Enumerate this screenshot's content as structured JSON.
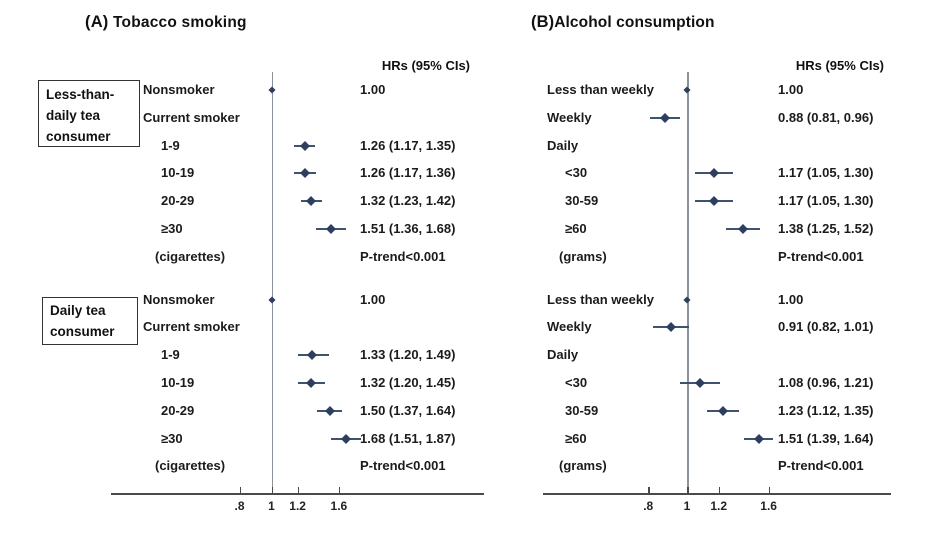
{
  "figure": {
    "colors": {
      "marker": "#2d3e5f",
      "ci_line": "#41526e",
      "ref_line": "#8b929a",
      "axis_line": "#4a4a4a",
      "text": "#1a1a1a"
    }
  },
  "chart_data": [
    {
      "type": "forest",
      "panel_label": "(A)",
      "title": "Tobacco smoking",
      "column_header": "HRs (95% CIs)",
      "x_scale": "log",
      "ref_value": 1,
      "x_ticks": [
        0.8,
        1,
        1.2,
        1.6
      ],
      "x_tick_labels": [
        ".8",
        "1",
        "1.2",
        "1.6"
      ],
      "groups": [
        {
          "box_label_lines": [
            "Less-than-",
            "daily tea",
            "consumer"
          ],
          "rows": [
            {
              "label": "Nonsmoker",
              "indent": 0,
              "est": 1.0,
              "hr_text": "1.00"
            },
            {
              "label": "Current smoker",
              "indent": 0
            },
            {
              "label": "1-9",
              "indent": 1,
              "est": 1.26,
              "lo": 1.17,
              "hi": 1.35,
              "hr_text": "1.26 (1.17, 1.35)"
            },
            {
              "label": "10-19",
              "indent": 1,
              "est": 1.26,
              "lo": 1.17,
              "hi": 1.36,
              "hr_text": "1.26 (1.17, 1.36)"
            },
            {
              "label": "20-29",
              "indent": 1,
              "est": 1.32,
              "lo": 1.23,
              "hi": 1.42,
              "hr_text": "1.32 (1.23, 1.42)"
            },
            {
              "label": "≥30",
              "indent": 1,
              "est": 1.51,
              "lo": 1.36,
              "hi": 1.68,
              "hr_text": "1.51 (1.36, 1.68)"
            },
            {
              "label": "(cigarettes)",
              "indent": 1,
              "unit_row": true,
              "hr_text": "P-trend<0.001",
              "hr_bold": true
            }
          ]
        },
        {
          "box_label_lines": [
            "Daily tea",
            "consumer"
          ],
          "rows": [
            {
              "label": "Nonsmoker",
              "indent": 0,
              "est": 1.0,
              "hr_text": "1.00"
            },
            {
              "label": "Current smoker",
              "indent": 0
            },
            {
              "label": "1-9",
              "indent": 1,
              "est": 1.33,
              "lo": 1.2,
              "hi": 1.49,
              "hr_text": "1.33 (1.20, 1.49)"
            },
            {
              "label": "10-19",
              "indent": 1,
              "est": 1.32,
              "lo": 1.2,
              "hi": 1.45,
              "hr_text": "1.32 (1.20, 1.45)"
            },
            {
              "label": "20-29",
              "indent": 1,
              "est": 1.5,
              "lo": 1.37,
              "hi": 1.64,
              "hr_text": "1.50 (1.37, 1.64)"
            },
            {
              "label": "≥30",
              "indent": 1,
              "est": 1.68,
              "lo": 1.51,
              "hi": 1.87,
              "hr_text": "1.68 (1.51, 1.87)"
            },
            {
              "label": "(cigarettes)",
              "indent": 1,
              "unit_row": true,
              "hr_text": "P-trend<0.001",
              "hr_bold": true
            }
          ]
        }
      ]
    },
    {
      "type": "forest",
      "panel_label": "(B)",
      "title": "Alcohol consumption",
      "column_header": "HRs (95% CIs)",
      "x_scale": "log",
      "ref_value": 1,
      "x_ticks": [
        0.8,
        1,
        1.2,
        1.6
      ],
      "x_tick_labels": [
        ".8",
        "1",
        "1.2",
        "1.6"
      ],
      "groups": [
        {
          "box_label_lines": [],
          "rows": [
            {
              "label": "Less than weekly",
              "indent": 0,
              "est": 1.0,
              "hr_text": "1.00"
            },
            {
              "label": "Weekly",
              "indent": 0,
              "est": 0.88,
              "lo": 0.81,
              "hi": 0.96,
              "hr_text": "0.88 (0.81, 0.96)"
            },
            {
              "label": "Daily",
              "indent": 0
            },
            {
              "label": "<30",
              "indent": 1,
              "est": 1.17,
              "lo": 1.05,
              "hi": 1.3,
              "hr_text": "1.17 (1.05, 1.30)"
            },
            {
              "label": "30-59",
              "indent": 1,
              "est": 1.17,
              "lo": 1.05,
              "hi": 1.3,
              "hr_text": "1.17 (1.05, 1.30)"
            },
            {
              "label": "≥60",
              "indent": 1,
              "est": 1.38,
              "lo": 1.25,
              "hi": 1.52,
              "hr_text": "1.38 (1.25, 1.52)"
            },
            {
              "label": "(grams)",
              "indent": 1,
              "unit_row": true,
              "hr_text": "P-trend<0.001",
              "hr_bold": true
            }
          ]
        },
        {
          "box_label_lines": [],
          "rows": [
            {
              "label": "Less than weekly",
              "indent": 0,
              "est": 1.0,
              "hr_text": "1.00"
            },
            {
              "label": "Weekly",
              "indent": 0,
              "est": 0.91,
              "lo": 0.82,
              "hi": 1.01,
              "hr_text": "0.91 (0.82, 1.01)"
            },
            {
              "label": "Daily",
              "indent": 0
            },
            {
              "label": "<30",
              "indent": 1,
              "est": 1.08,
              "lo": 0.96,
              "hi": 1.21,
              "hr_text": "1.08 (0.96, 1.21)"
            },
            {
              "label": "30-59",
              "indent": 1,
              "est": 1.23,
              "lo": 1.12,
              "hi": 1.35,
              "hr_text": "1.23 (1.12, 1.35)"
            },
            {
              "label": "≥60",
              "indent": 1,
              "est": 1.51,
              "lo": 1.39,
              "hi": 1.64,
              "hr_text": "1.51 (1.39, 1.64)"
            },
            {
              "label": "(grams)",
              "indent": 1,
              "unit_row": true,
              "hr_text": "P-trend<0.001",
              "hr_bold": true
            }
          ]
        }
      ]
    }
  ]
}
